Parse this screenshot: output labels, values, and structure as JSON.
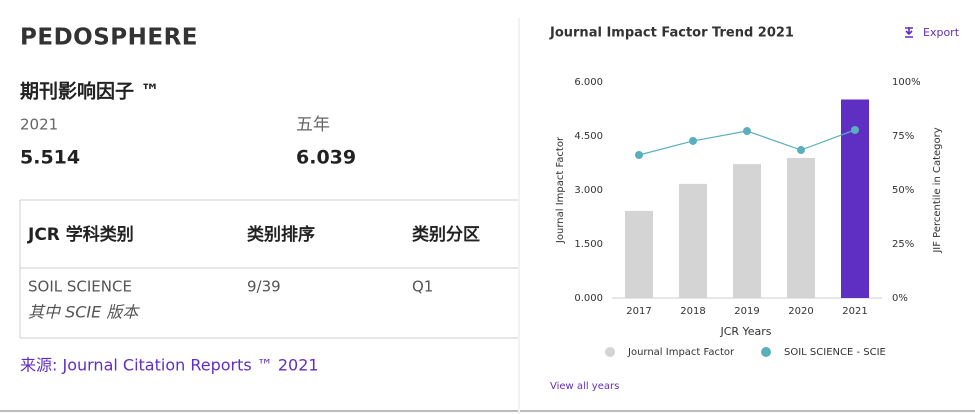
{
  "summary": {
    "journal": "PEDOSPHERE",
    "heading": "期刊影响因子 ™",
    "year_label": "2021",
    "five_year_label": "五年",
    "jif": "5.514",
    "five_year_jif": "6.039",
    "table": {
      "headers": [
        "JCR 学科类别",
        "类别排序",
        "类别分区"
      ],
      "rows": [
        [
          "SOIL SCIENCE",
          "9/39",
          "Q1"
        ]
      ],
      "edition": "其中 SCIE 版本"
    },
    "source": "来源: Journal Citation Reports ™ 2021"
  },
  "chart_data": {
    "type": "bar",
    "title": "Journal Impact Factor Trend 2021",
    "export": "Export",
    "link": "View all years",
    "x_label": "JCR Years",
    "y_label": "Journal Impact Factor",
    "y2_label": "JIF Percentile in Category",
    "categories": [
      "2017",
      "2018",
      "2019",
      "2020",
      "2021"
    ],
    "series": [
      {
        "name": "Journal Impact Factor",
        "color": "#d4d4d4",
        "colors": [
          "#d4d4d4",
          "#d4d4d4",
          "#d4d4d4",
          "#d4d4d4",
          "#5f2fc4"
        ],
        "values": [
          2.42,
          3.17,
          3.72,
          3.89,
          5.514
        ]
      },
      {
        "name": "SOIL SCIENCE - SCIE",
        "type": "line",
        "axis": "y2",
        "color": "#5aafbd",
        "values": [
          66.2,
          72.7,
          77.3,
          68.5,
          77.8
        ]
      }
    ],
    "ylim": [
      0,
      6
    ],
    "yticks": [
      {
        "value": 0,
        "label": "0.000"
      },
      {
        "value": 1.5,
        "label": "1.500"
      },
      {
        "value": 3,
        "label": "3.000"
      },
      {
        "value": 4.5,
        "label": "4.500"
      },
      {
        "value": 6,
        "label": "6.000"
      }
    ],
    "y2lim": [
      0,
      100
    ],
    "y2ticks": [
      {
        "value": 0,
        "label": "0%"
      },
      {
        "value": 25,
        "label": "25%"
      },
      {
        "value": 50,
        "label": "50%"
      },
      {
        "value": 75,
        "label": "75%"
      },
      {
        "value": 100,
        "label": "100%"
      }
    ],
    "legend": "bottom"
  }
}
